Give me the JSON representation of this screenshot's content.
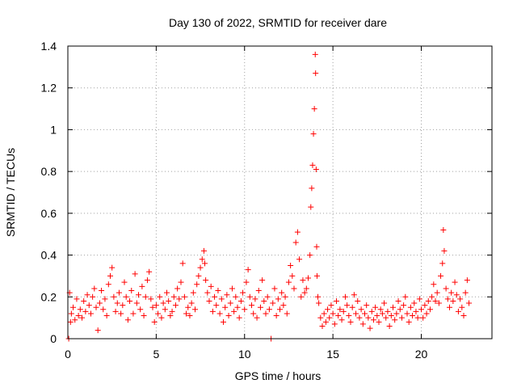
{
  "chart_data": {
    "type": "scatter",
    "title": "Day 130 of 2022, SRMTID for receiver dare",
    "xlabel": "GPS time / hours",
    "ylabel": "SRMTID / TECUs",
    "xlim": [
      0,
      24
    ],
    "ylim": [
      0,
      1.4
    ],
    "x_ticks": [
      0,
      5,
      10,
      15,
      20
    ],
    "x_tick_labels": [
      "0",
      "5",
      "10",
      "15",
      "20"
    ],
    "y_ticks": [
      0,
      0.2,
      0.4,
      0.6,
      0.8,
      1.0,
      1.2,
      1.4
    ],
    "y_tick_labels": [
      "0",
      "0.2",
      "0.4",
      "0.6",
      "0.8",
      "1",
      "1.2",
      "1.4"
    ],
    "grid": true,
    "marker": "+",
    "marker_color": "#ff0000",
    "series": [
      {
        "name": "SRMTID",
        "points": [
          [
            0.05,
            0.0
          ],
          [
            0.1,
            0.22
          ],
          [
            0.15,
            0.08
          ],
          [
            0.2,
            0.12
          ],
          [
            0.3,
            0.15
          ],
          [
            0.4,
            0.09
          ],
          [
            0.5,
            0.19
          ],
          [
            0.6,
            0.11
          ],
          [
            0.7,
            0.14
          ],
          [
            0.8,
            0.1
          ],
          [
            0.9,
            0.18
          ],
          [
            1.0,
            0.13
          ],
          [
            1.1,
            0.21
          ],
          [
            1.2,
            0.16
          ],
          [
            1.3,
            0.12
          ],
          [
            1.4,
            0.2
          ],
          [
            1.5,
            0.24
          ],
          [
            1.6,
            0.15
          ],
          [
            1.7,
            0.04
          ],
          [
            1.8,
            0.17
          ],
          [
            1.9,
            0.23
          ],
          [
            2.0,
            0.14
          ],
          [
            2.1,
            0.19
          ],
          [
            2.2,
            0.11
          ],
          [
            2.3,
            0.26
          ],
          [
            2.4,
            0.3
          ],
          [
            2.5,
            0.34
          ],
          [
            2.6,
            0.2
          ],
          [
            2.7,
            0.13
          ],
          [
            2.8,
            0.17
          ],
          [
            2.9,
            0.22
          ],
          [
            3.0,
            0.12
          ],
          [
            3.1,
            0.16
          ],
          [
            3.2,
            0.27
          ],
          [
            3.3,
            0.2
          ],
          [
            3.4,
            0.09
          ],
          [
            3.5,
            0.18
          ],
          [
            3.6,
            0.23
          ],
          [
            3.7,
            0.12
          ],
          [
            3.8,
            0.31
          ],
          [
            3.9,
            0.17
          ],
          [
            4.0,
            0.21
          ],
          [
            4.1,
            0.14
          ],
          [
            4.2,
            0.25
          ],
          [
            4.3,
            0.11
          ],
          [
            4.4,
            0.2
          ],
          [
            4.5,
            0.28
          ],
          [
            4.6,
            0.32
          ],
          [
            4.7,
            0.19
          ],
          [
            4.8,
            0.15
          ],
          [
            4.9,
            0.08
          ],
          [
            5.0,
            0.16
          ],
          [
            5.1,
            0.12
          ],
          [
            5.2,
            0.2
          ],
          [
            5.3,
            0.1
          ],
          [
            5.4,
            0.17
          ],
          [
            5.5,
            0.14
          ],
          [
            5.6,
            0.22
          ],
          [
            5.7,
            0.18
          ],
          [
            5.8,
            0.11
          ],
          [
            5.9,
            0.13
          ],
          [
            6.0,
            0.2
          ],
          [
            6.1,
            0.16
          ],
          [
            6.2,
            0.24
          ],
          [
            6.3,
            0.19
          ],
          [
            6.4,
            0.27
          ],
          [
            6.5,
            0.36
          ],
          [
            6.6,
            0.2
          ],
          [
            6.7,
            0.12
          ],
          [
            6.8,
            0.15
          ],
          [
            6.9,
            0.11
          ],
          [
            7.0,
            0.17
          ],
          [
            7.1,
            0.22
          ],
          [
            7.2,
            0.14
          ],
          [
            7.3,
            0.26
          ],
          [
            7.4,
            0.3
          ],
          [
            7.5,
            0.34
          ],
          [
            7.6,
            0.38
          ],
          [
            7.7,
            0.42
          ],
          [
            7.75,
            0.36
          ],
          [
            7.8,
            0.28
          ],
          [
            7.9,
            0.22
          ],
          [
            8.0,
            0.18
          ],
          [
            8.1,
            0.25
          ],
          [
            8.2,
            0.13
          ],
          [
            8.3,
            0.2
          ],
          [
            8.4,
            0.16
          ],
          [
            8.5,
            0.23
          ],
          [
            8.6,
            0.12
          ],
          [
            8.7,
            0.19
          ],
          [
            8.8,
            0.08
          ],
          [
            8.9,
            0.15
          ],
          [
            9.0,
            0.21
          ],
          [
            9.1,
            0.11
          ],
          [
            9.2,
            0.17
          ],
          [
            9.3,
            0.24
          ],
          [
            9.4,
            0.13
          ],
          [
            9.5,
            0.2
          ],
          [
            9.6,
            0.15
          ],
          [
            9.7,
            0.1
          ],
          [
            9.8,
            0.18
          ],
          [
            9.9,
            0.22
          ],
          [
            10.0,
            0.14
          ],
          [
            10.1,
            0.27
          ],
          [
            10.2,
            0.33
          ],
          [
            10.3,
            0.2
          ],
          [
            10.4,
            0.16
          ],
          [
            10.5,
            0.12
          ],
          [
            10.6,
            0.19
          ],
          [
            10.7,
            0.1
          ],
          [
            10.8,
            0.23
          ],
          [
            10.9,
            0.15
          ],
          [
            11.0,
            0.28
          ],
          [
            11.1,
            0.18
          ],
          [
            11.2,
            0.12
          ],
          [
            11.3,
            0.2
          ],
          [
            11.4,
            0.14
          ],
          [
            11.5,
            0.0
          ],
          [
            11.6,
            0.17
          ],
          [
            11.7,
            0.24
          ],
          [
            11.8,
            0.11
          ],
          [
            11.9,
            0.19
          ],
          [
            12.0,
            0.14
          ],
          [
            12.1,
            0.22
          ],
          [
            12.2,
            0.16
          ],
          [
            12.3,
            0.2
          ],
          [
            12.4,
            0.12
          ],
          [
            12.5,
            0.27
          ],
          [
            12.6,
            0.35
          ],
          [
            12.7,
            0.3
          ],
          [
            12.8,
            0.24
          ],
          [
            12.9,
            0.46
          ],
          [
            13.0,
            0.51
          ],
          [
            13.1,
            0.38
          ],
          [
            13.2,
            0.2
          ],
          [
            13.3,
            0.28
          ],
          [
            13.4,
            0.22
          ],
          [
            13.5,
            0.24
          ],
          [
            13.6,
            0.29
          ],
          [
            13.7,
            0.4
          ],
          [
            13.75,
            0.63
          ],
          [
            13.8,
            0.72
          ],
          [
            13.85,
            0.83
          ],
          [
            13.9,
            0.98
          ],
          [
            13.95,
            1.1
          ],
          [
            14.0,
            1.36
          ],
          [
            14.02,
            1.27
          ],
          [
            14.05,
            0.81
          ],
          [
            14.08,
            0.44
          ],
          [
            14.1,
            0.3
          ],
          [
            14.15,
            0.2
          ],
          [
            14.2,
            0.17
          ],
          [
            14.3,
            0.1
          ],
          [
            14.4,
            0.06
          ],
          [
            14.5,
            0.12
          ],
          [
            14.6,
            0.08
          ],
          [
            14.7,
            0.14
          ],
          [
            14.8,
            0.1
          ],
          [
            14.9,
            0.16
          ],
          [
            15.0,
            0.12
          ],
          [
            15.1,
            0.07
          ],
          [
            15.2,
            0.18
          ],
          [
            15.3,
            0.11
          ],
          [
            15.4,
            0.14
          ],
          [
            15.5,
            0.09
          ],
          [
            15.6,
            0.13
          ],
          [
            15.7,
            0.2
          ],
          [
            15.8,
            0.16
          ],
          [
            15.9,
            0.11
          ],
          [
            16.0,
            0.08
          ],
          [
            16.1,
            0.15
          ],
          [
            16.2,
            0.21
          ],
          [
            16.3,
            0.12
          ],
          [
            16.4,
            0.18
          ],
          [
            16.5,
            0.1
          ],
          [
            16.6,
            0.14
          ],
          [
            16.7,
            0.07
          ],
          [
            16.8,
            0.12
          ],
          [
            16.9,
            0.16
          ],
          [
            17.0,
            0.1
          ],
          [
            17.1,
            0.05
          ],
          [
            17.2,
            0.13
          ],
          [
            17.3,
            0.09
          ],
          [
            17.4,
            0.15
          ],
          [
            17.5,
            0.11
          ],
          [
            17.6,
            0.08
          ],
          [
            17.7,
            0.14
          ],
          [
            17.8,
            0.12
          ],
          [
            17.9,
            0.17
          ],
          [
            18.0,
            0.1
          ],
          [
            18.1,
            0.13
          ],
          [
            18.2,
            0.06
          ],
          [
            18.3,
            0.11
          ],
          [
            18.4,
            0.15
          ],
          [
            18.5,
            0.09
          ],
          [
            18.6,
            0.12
          ],
          [
            18.7,
            0.18
          ],
          [
            18.8,
            0.14
          ],
          [
            18.9,
            0.1
          ],
          [
            19.0,
            0.16
          ],
          [
            19.1,
            0.2
          ],
          [
            19.2,
            0.12
          ],
          [
            19.3,
            0.08
          ],
          [
            19.4,
            0.15
          ],
          [
            19.5,
            0.11
          ],
          [
            19.6,
            0.17
          ],
          [
            19.7,
            0.13
          ],
          [
            19.8,
            0.1
          ],
          [
            19.9,
            0.19
          ],
          [
            20.0,
            0.14
          ],
          [
            20.1,
            0.1
          ],
          [
            20.2,
            0.16
          ],
          [
            20.3,
            0.12
          ],
          [
            20.4,
            0.18
          ],
          [
            20.5,
            0.14
          ],
          [
            20.6,
            0.2
          ],
          [
            20.7,
            0.26
          ],
          [
            20.8,
            0.18
          ],
          [
            20.9,
            0.22
          ],
          [
            21.0,
            0.17
          ],
          [
            21.1,
            0.3
          ],
          [
            21.2,
            0.36
          ],
          [
            21.25,
            0.52
          ],
          [
            21.3,
            0.42
          ],
          [
            21.4,
            0.24
          ],
          [
            21.5,
            0.19
          ],
          [
            21.6,
            0.15
          ],
          [
            21.7,
            0.22
          ],
          [
            21.8,
            0.18
          ],
          [
            21.9,
            0.27
          ],
          [
            22.0,
            0.21
          ],
          [
            22.1,
            0.13
          ],
          [
            22.2,
            0.19
          ],
          [
            22.3,
            0.15
          ],
          [
            22.4,
            0.11
          ],
          [
            22.5,
            0.22
          ],
          [
            22.6,
            0.28
          ],
          [
            22.7,
            0.17
          ]
        ]
      }
    ]
  }
}
